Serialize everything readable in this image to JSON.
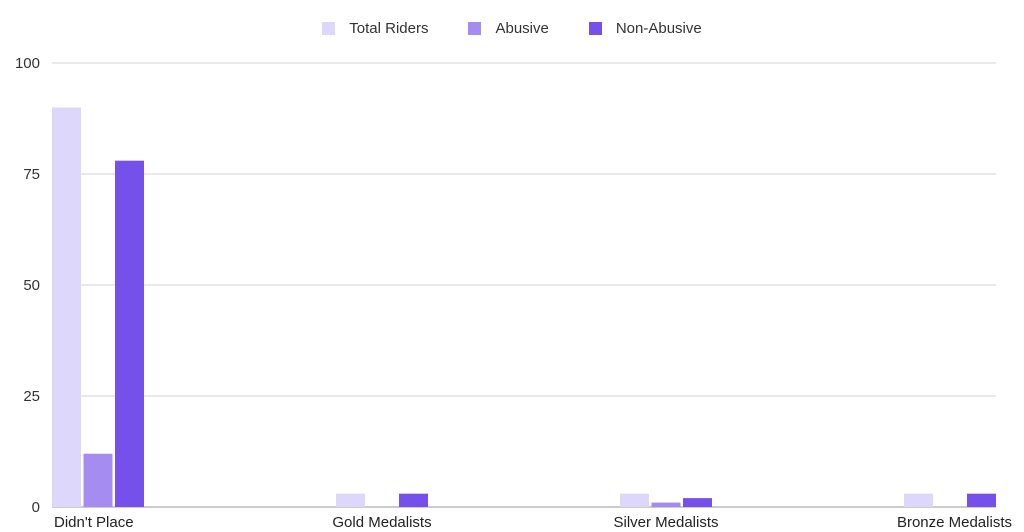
{
  "chart_data": {
    "type": "bar",
    "categories": [
      "Didn't Place",
      "Gold Medalists",
      "Silver Medalists",
      "Bronze Medalists"
    ],
    "series": [
      {
        "name": "Total Riders",
        "values": [
          90,
          3,
          3,
          3
        ],
        "color": "#ddd8fb"
      },
      {
        "name": "Abusive",
        "values": [
          12,
          0,
          1,
          0
        ],
        "color": "#a48cf0"
      },
      {
        "name": "Non-Abusive",
        "values": [
          78,
          3,
          2,
          3
        ],
        "color": "#7650ea"
      }
    ],
    "ylim": [
      0,
      100
    ],
    "yticks": [
      "0",
      "25",
      "50",
      "75",
      "100"
    ],
    "grid": true,
    "legend_position": "top-center",
    "title": "",
    "xlabel": "",
    "ylabel": ""
  }
}
